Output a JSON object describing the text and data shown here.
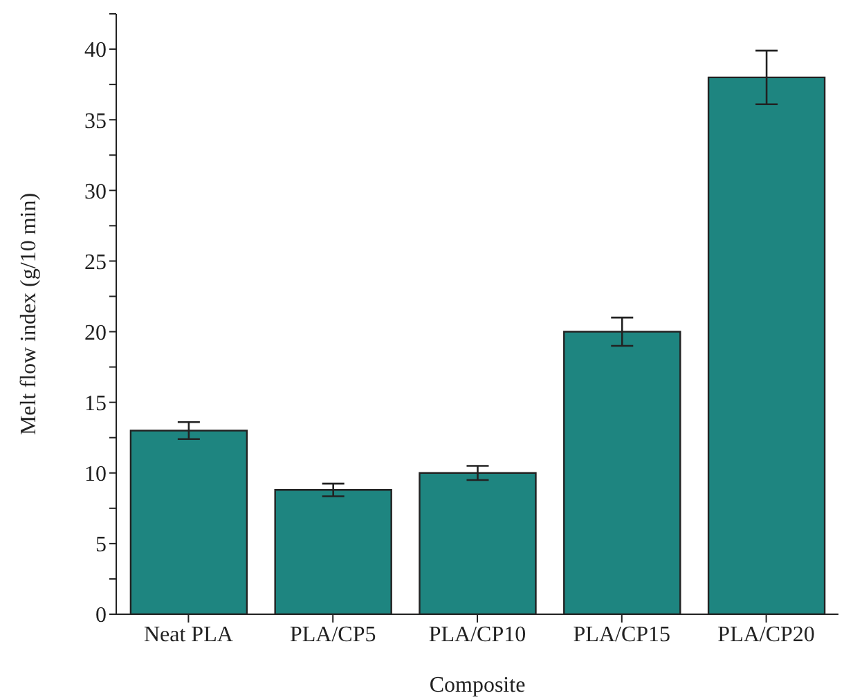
{
  "chart_data": {
    "type": "bar",
    "xlabel": "Composite",
    "ylabel": "Melt flow index (g/10 min)",
    "categories": [
      "Neat PLA",
      "PLA/CP5",
      "PLA/CP10",
      "PLA/CP15",
      "PLA/CP20"
    ],
    "values": [
      13.0,
      8.8,
      10.0,
      20.0,
      38.0
    ],
    "errors": [
      0.6,
      0.45,
      0.5,
      1.0,
      1.9
    ],
    "color": "#1e8580",
    "ylim": [
      0,
      42.5
    ],
    "yticks": [
      0,
      {
        "value": 2.5,
        "label": null
      },
      5,
      {
        "value": 7.5,
        "label": null
      },
      10,
      {
        "value": 12.5,
        "label": null
      },
      15,
      {
        "value": 17.5,
        "label": null
      },
      20,
      {
        "value": 22.5,
        "label": null
      },
      25,
      {
        "value": 27.5,
        "label": null
      },
      30,
      {
        "value": 32.5,
        "label": null
      },
      35,
      {
        "value": 37.5,
        "label": null
      },
      40,
      {
        "value": 42.5,
        "label": null
      }
    ],
    "grid": false,
    "legend": false
  }
}
